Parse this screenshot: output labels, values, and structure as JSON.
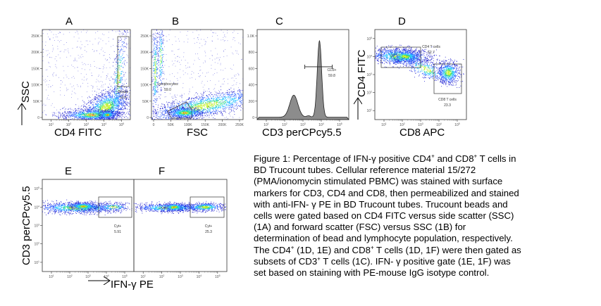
{
  "figure": {
    "panels": [
      {
        "id": "A",
        "letter": "A",
        "xlabel": "CD4 FITC",
        "ylabel": "SSC",
        "x_scale": "log",
        "y_scale": "linear",
        "x_ticks": [
          "10^1",
          "10^2",
          "10^3",
          "10^4",
          "10^5"
        ],
        "y_ticks": [
          "0",
          "50K",
          "100K",
          "150K",
          "200K",
          "250K"
        ],
        "gate": {
          "name": "Beads",
          "value": "10.6"
        }
      },
      {
        "id": "B",
        "letter": "B",
        "xlabel": "FSC",
        "ylabel": "",
        "x_scale": "linear",
        "y_scale": "linear",
        "x_ticks": [
          "0",
          "50K",
          "100K",
          "150K",
          "200K",
          "250K"
        ],
        "y_ticks": [
          "0",
          "50K",
          "100K",
          "150K",
          "200K",
          "250K"
        ],
        "gate": {
          "name": "Lymphocytes",
          "value": "59.0"
        }
      },
      {
        "id": "C",
        "letter": "C",
        "xlabel": "CD3 perCPcy5.5",
        "ylabel": "",
        "x_scale": "log",
        "y_scale": "linear",
        "x_ticks": [
          "10^1",
          "10^2",
          "10^3",
          "10^4",
          "10^5"
        ],
        "y_ticks": [
          "0",
          "200",
          "400",
          "600",
          "800",
          "1.0K"
        ],
        "gate": {
          "name": "CD3+",
          "value": "59.8"
        }
      },
      {
        "id": "D",
        "letter": "D",
        "xlabel": "CD8 APC",
        "ylabel": "CD4 FITC",
        "x_scale": "log",
        "y_scale": "log",
        "x_ticks": [
          "10^1",
          "10^2",
          "10^3",
          "10^4",
          "10^5"
        ],
        "y_ticks": [
          "10^1",
          "10^2",
          "10^3",
          "10^4",
          "10^5"
        ],
        "gates": [
          {
            "name": "CD4 T cells",
            "value": "52.7"
          },
          {
            "name": "CD8 T cells",
            "value": "23.3"
          }
        ]
      },
      {
        "id": "E",
        "letter": "E",
        "xlabel": "",
        "ylabel": "CD3 perCPcy5.5",
        "x_scale": "log",
        "y_scale": "log",
        "x_ticks": [
          "10^1",
          "10^2",
          "10^3",
          "10^4",
          "10^5"
        ],
        "y_ticks": [
          "10^1",
          "10^2",
          "10^3",
          "10^4",
          "10^5"
        ],
        "gate": {
          "name": "Cyt+",
          "value": "5.91"
        }
      },
      {
        "id": "F",
        "letter": "F",
        "xlabel": "",
        "ylabel": "",
        "x_scale": "log",
        "y_scale": "log",
        "x_ticks": [
          "10^1",
          "10^2",
          "10^3",
          "10^4",
          "10^5"
        ],
        "y_ticks": [],
        "gate": {
          "name": "Cyt+",
          "value": "25.3"
        }
      }
    ],
    "shared_xlabel_EF": "IFN-γ PE",
    "histogram_C": {
      "peaks": [
        {
          "x_log": 2.5,
          "count": 300
        },
        {
          "x_log": 3.9,
          "count": 1040
        }
      ],
      "dip_x_log": 3.3,
      "gate_range_log": [
        3.1,
        4.6
      ],
      "gate_count": 690
    }
  },
  "caption": {
    "p1": "Figure 1: Percentage of IFN-γ positive CD4",
    "p2": " and CD8",
    "p3": " T cells in BD Trucount tubes. Cellular reference material 15/272 (PMA/ionomycin stimulated PBMC) was stained with surface markers for CD3, CD4 and CD8, then permeabilized and stained with anti-IFN- γ PE in BD Trucount tubes. Trucount beads and cells were gated based on CD4 FITC versus side scatter (SSC) (1A) and forward scatter (FSC) versus SSC (1B) for determination of bead and lymphocyte population, respectively. The CD4",
    "p4": " (1D, 1E) and CD8",
    "p5": " T cells (1D, 1F) were then gated as subsets of CD3",
    "p6": " T cells (1C). IFN- γ positive gate (1E, 1F) was set based on staining with PE-mouse IgG isotype control.",
    "plus": "+"
  },
  "colors": {
    "frame": "#333333",
    "hist_fill": "#8c8c8c",
    "density": [
      "#2020d0",
      "#3060ff",
      "#20c0ff",
      "#30e080",
      "#c0f020",
      "#ff8000",
      "#e02000"
    ]
  }
}
